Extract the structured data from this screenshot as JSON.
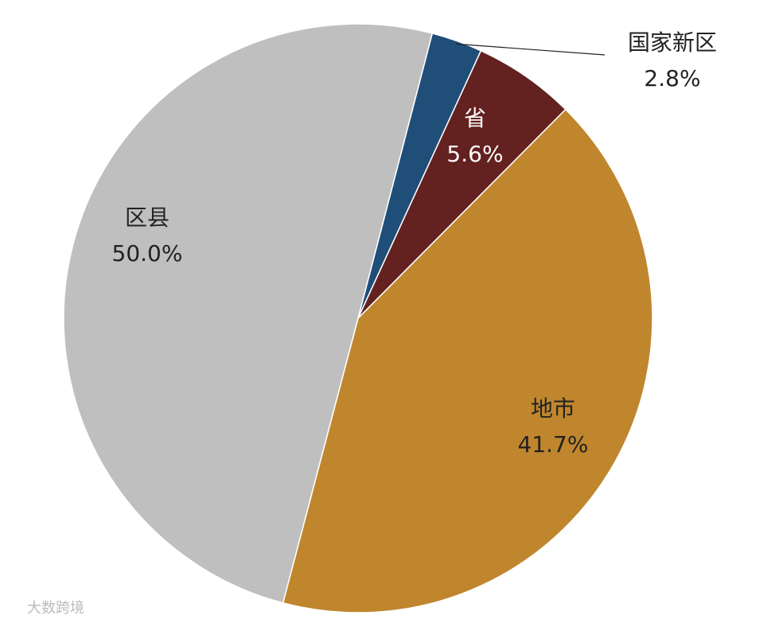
{
  "chart_data": {
    "type": "pie",
    "categories": [
      "国家新区",
      "省",
      "地市",
      "区县"
    ],
    "values": [
      2.8,
      5.6,
      41.7,
      50.0
    ],
    "value_labels": [
      "2.8%",
      "5.6%",
      "41.7%",
      "50.0%"
    ],
    "colors": [
      "#1f4e79",
      "#632120",
      "#c0862d",
      "#bfbfbf"
    ]
  },
  "watermark": "大数跨境"
}
